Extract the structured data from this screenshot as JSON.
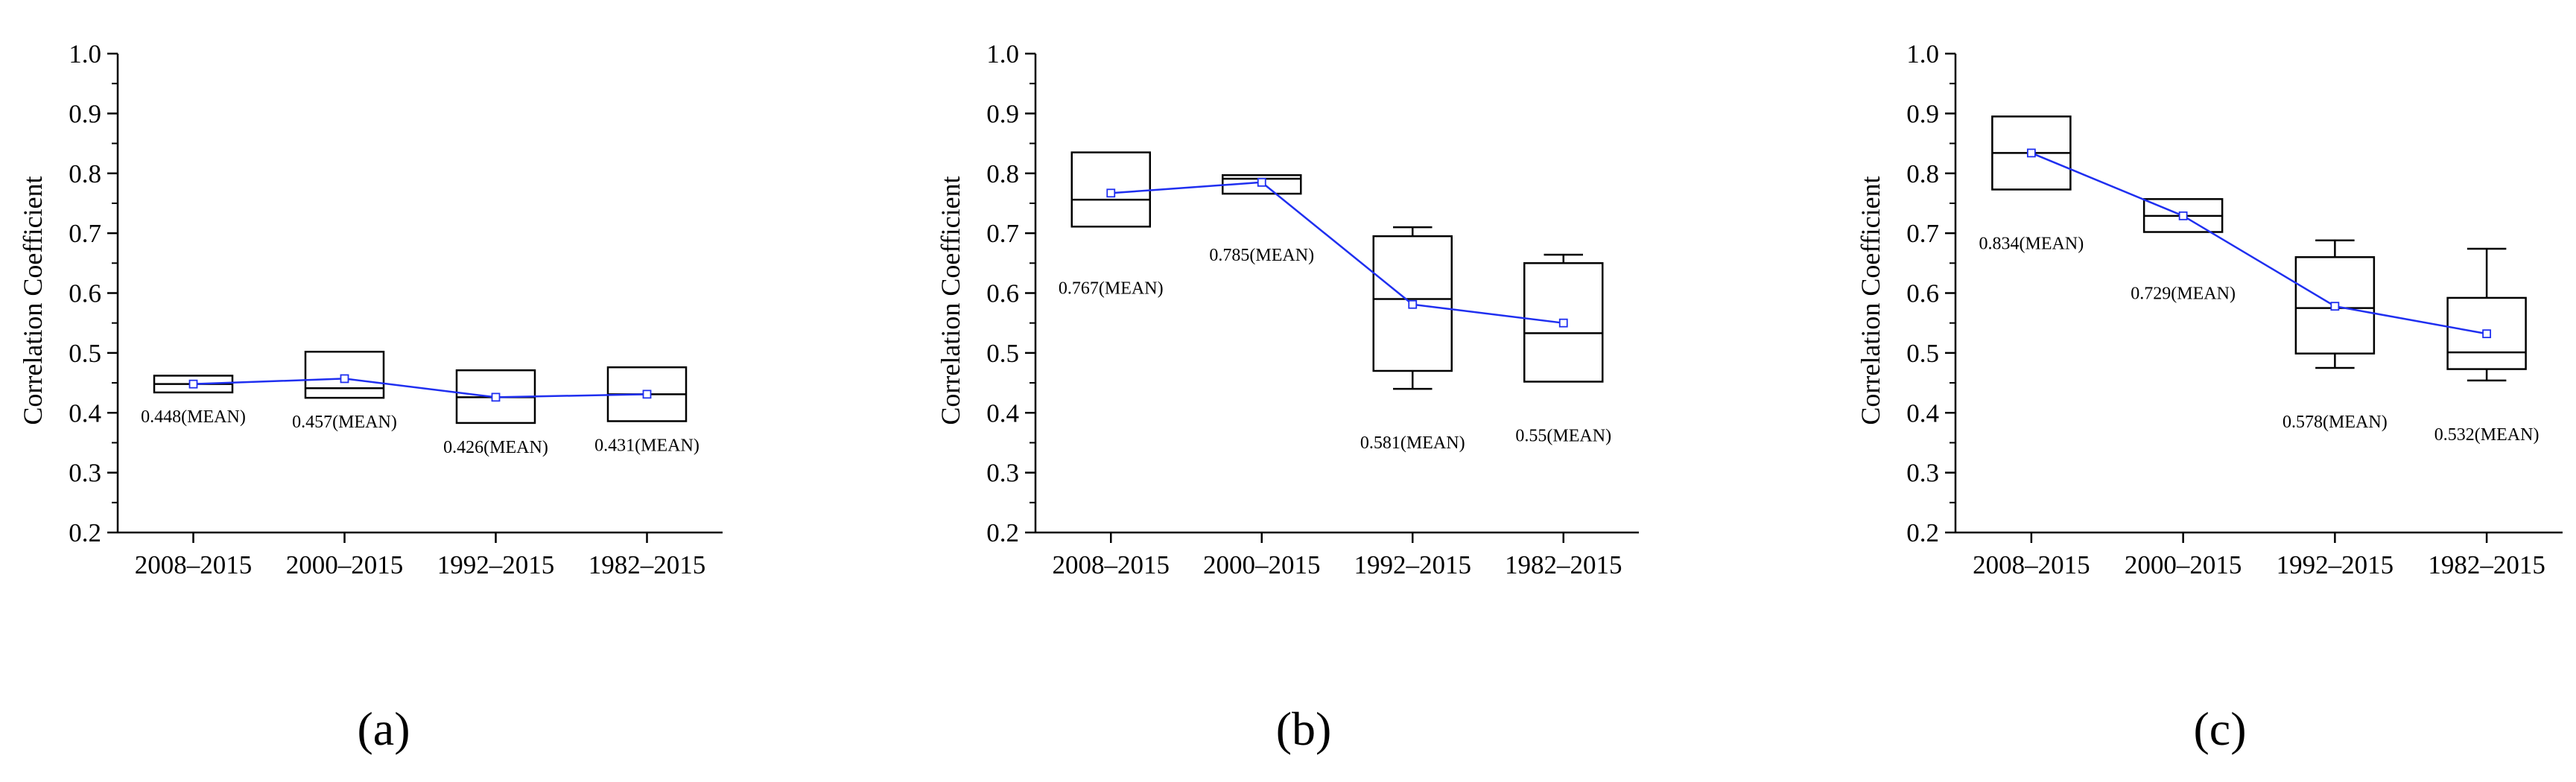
{
  "chart_data": [
    {
      "type": "box",
      "panel": "a",
      "panel_label": "(a)",
      "ylabel": "Correlation Coefficient",
      "ylim": [
        0.2,
        1.0
      ],
      "yticks": [
        "0.2",
        "0.3",
        "0.4",
        "0.5",
        "0.6",
        "0.7",
        "0.8",
        "0.9",
        "1.0"
      ],
      "categories": [
        "2008–2015",
        "2000–2015",
        "1992–2015",
        "1982–2015"
      ],
      "boxes": [
        {
          "q1": 0.434,
          "median": 0.448,
          "q3": 0.462,
          "whisker_low": 0.434,
          "whisker_high": 0.462,
          "mean": 0.448,
          "mean_label": "0.448(MEAN)"
        },
        {
          "q1": 0.425,
          "median": 0.441,
          "q3": 0.502,
          "whisker_low": 0.425,
          "whisker_high": 0.502,
          "mean": 0.457,
          "mean_label": "0.457(MEAN)"
        },
        {
          "q1": 0.383,
          "median": 0.426,
          "q3": 0.471,
          "whisker_low": 0.383,
          "whisker_high": 0.471,
          "mean": 0.426,
          "mean_label": "0.426(MEAN)"
        },
        {
          "q1": 0.386,
          "median": 0.431,
          "q3": 0.476,
          "whisker_low": 0.386,
          "whisker_high": 0.476,
          "mean": 0.431,
          "mean_label": "0.431(MEAN)"
        }
      ]
    },
    {
      "type": "box",
      "panel": "b",
      "panel_label": "(b)",
      "ylabel": "Correlation Coefficient",
      "ylim": [
        0.2,
        1.0
      ],
      "yticks": [
        "0.2",
        "0.3",
        "0.4",
        "0.5",
        "0.6",
        "0.7",
        "0.8",
        "0.9",
        "1.0"
      ],
      "categories": [
        "2008–2015",
        "2000–2015",
        "1992–2015",
        "1982–2015"
      ],
      "boxes": [
        {
          "q1": 0.711,
          "median": 0.756,
          "q3": 0.835,
          "whisker_low": 0.711,
          "whisker_high": 0.835,
          "mean": 0.767,
          "mean_label": "0.767(MEAN)"
        },
        {
          "q1": 0.766,
          "median": 0.791,
          "q3": 0.797,
          "whisker_low": 0.766,
          "whisker_high": 0.797,
          "mean": 0.785,
          "mean_label": "0.785(MEAN)"
        },
        {
          "q1": 0.47,
          "median": 0.59,
          "q3": 0.695,
          "whisker_low": 0.44,
          "whisker_high": 0.71,
          "mean": 0.581,
          "mean_label": "0.581(MEAN)"
        },
        {
          "q1": 0.452,
          "median": 0.533,
          "q3": 0.65,
          "whisker_low": 0.452,
          "whisker_high": 0.664,
          "mean": 0.55,
          "mean_label": "0.55(MEAN)"
        }
      ]
    },
    {
      "type": "box",
      "panel": "c",
      "panel_label": "(c)",
      "ylabel": "Correlation Coefficient",
      "ylim": [
        0.2,
        1.0
      ],
      "yticks": [
        "0.2",
        "0.3",
        "0.4",
        "0.5",
        "0.6",
        "0.7",
        "0.8",
        "0.9",
        "1.0"
      ],
      "categories": [
        "2008–2015",
        "2000–2015",
        "1992–2015",
        "1982–2015"
      ],
      "boxes": [
        {
          "q1": 0.773,
          "median": 0.834,
          "q3": 0.895,
          "whisker_low": 0.773,
          "whisker_high": 0.895,
          "mean": 0.834,
          "mean_label": "0.834(MEAN)"
        },
        {
          "q1": 0.702,
          "median": 0.729,
          "q3": 0.757,
          "whisker_low": 0.702,
          "whisker_high": 0.757,
          "mean": 0.729,
          "mean_label": "0.729(MEAN)"
        },
        {
          "q1": 0.499,
          "median": 0.575,
          "q3": 0.66,
          "whisker_low": 0.475,
          "whisker_high": 0.688,
          "mean": 0.578,
          "mean_label": "0.578(MEAN)"
        },
        {
          "q1": 0.473,
          "median": 0.501,
          "q3": 0.592,
          "whisker_low": 0.454,
          "whisker_high": 0.674,
          "mean": 0.532,
          "mean_label": "0.532(MEAN)"
        }
      ]
    }
  ],
  "colors": {
    "axis": "#000000",
    "mean_line": "#1f2ff0",
    "mean_marker": "#1f2ff0"
  }
}
